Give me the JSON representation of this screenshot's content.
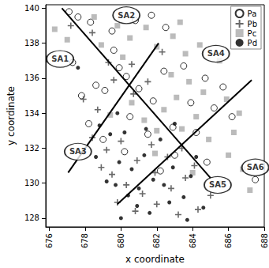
{
  "chart_data": {
    "type": "scatter",
    "x_label": "x coordinate",
    "y_label": "y coordinate",
    "xlim": [
      675.8,
      688
    ],
    "xticks": [
      676,
      678,
      680,
      682,
      684,
      686,
      688
    ],
    "ylim": [
      127.5,
      140.2
    ],
    "yticks": [
      128,
      130,
      132,
      134,
      136,
      138,
      140
    ],
    "grid": false,
    "legend": "top-right",
    "series": [
      {
        "name": "Pa",
        "color": "#000000",
        "marker": "open_circle",
        "x": [
          677.1,
          677.6,
          678.3,
          679.5,
          680.8,
          681.7,
          682.5,
          679.9,
          680.3,
          678.6,
          679.1,
          677.8,
          681.0,
          682.4,
          683.5,
          684.7,
          683.9,
          685.2,
          681.8,
          680.5,
          682.9,
          681.5,
          684.2,
          683.0,
          680.2,
          679.0,
          678.2,
          682.2,
          684.8,
          687.5,
          677.3,
          679.6,
          686.2,
          685.7
        ],
        "y": [
          139.8,
          139.5,
          139.2,
          138.7,
          139.3,
          139.6,
          138.9,
          136.6,
          136.1,
          135.6,
          135.3,
          135.0,
          135.4,
          136.4,
          136.7,
          136.0,
          134.6,
          134.3,
          134.7,
          133.8,
          133.2,
          132.8,
          132.9,
          131.6,
          131.8,
          132.5,
          133.4,
          130.7,
          131.2,
          130.2,
          136.9,
          137.6,
          133.8,
          135.5
        ]
      },
      {
        "name": "Pb",
        "color": "#444444",
        "marker": "plus",
        "x": [
          677.2,
          678.4,
          679.3,
          677.9,
          678.7,
          679.6,
          680.7,
          681.5,
          678.4,
          679.2,
          680.0,
          680.9,
          681.7,
          682.6,
          683.4,
          684.1,
          679.5,
          680.3,
          681.2,
          682.0,
          682.8,
          683.6,
          684.3,
          683.2,
          680.8,
          678.9,
          677.9,
          681.9,
          680.6,
          682.3,
          685.0,
          679.8
        ],
        "y": [
          139.0,
          138.6,
          136.9,
          134.8,
          134.2,
          135.9,
          135.1,
          135.8,
          132.6,
          131.9,
          132.4,
          131.3,
          132.2,
          131.5,
          132.0,
          131.0,
          130.5,
          129.9,
          129.4,
          128.8,
          129.7,
          130.3,
          128.5,
          128.2,
          128.4,
          130.9,
          131.8,
          130.6,
          136.8,
          137.5,
          129.3,
          128.9
        ]
      },
      {
        "name": "Pc",
        "color": "#aaaaaa",
        "marker": "square",
        "x": [
          676.3,
          677.0,
          678.5,
          679.8,
          680.5,
          681.4,
          682.0,
          682.9,
          683.6,
          684.4,
          685.5,
          682.8,
          683.8,
          684.6,
          685.9,
          686.6,
          683.1,
          684.2,
          682.4,
          681.3,
          683.4,
          684.9,
          686.0,
          686.8,
          685.5,
          682.0,
          680.6,
          679.4,
          681.9,
          678.9,
          683.3,
          686.3,
          687.2,
          680.1,
          684.0
        ],
        "y": [
          138.8,
          138.2,
          139.5,
          139.0,
          138.3,
          138.9,
          137.8,
          138.4,
          137.4,
          137.9,
          137.0,
          136.2,
          135.8,
          135.2,
          134.8,
          134.0,
          134.9,
          133.8,
          134.2,
          133.6,
          133.1,
          132.5,
          131.6,
          130.8,
          130.0,
          133.0,
          134.6,
          133.9,
          131.7,
          137.9,
          139.2,
          132.9,
          129.6,
          137.2,
          130.6
        ]
      },
      {
        "name": "Pd",
        "color": "#000000",
        "marker": "dot",
        "x": [
          677.6,
          678.8,
          679.4,
          680.2,
          679.9,
          680.6,
          681.3,
          681.8,
          682.4,
          681.0,
          680.4,
          679.7,
          680.9,
          681.6,
          682.7,
          683.5,
          683.9,
          682.2,
          683.0,
          684.2,
          679.2,
          678.6,
          679.8,
          683.7,
          684.6,
          682.9,
          680.0,
          681.4
        ],
        "y": [
          136.6,
          133.3,
          132.8,
          132.9,
          131.2,
          130.8,
          131.6,
          130.2,
          129.9,
          129.7,
          129.3,
          129.9,
          128.7,
          128.3,
          128.9,
          129.2,
          130.4,
          132.5,
          133.4,
          131.5,
          130.1,
          131.5,
          134.0,
          127.9,
          128.6,
          130.9,
          128.0,
          133.1
        ]
      }
    ],
    "lines": [
      {
        "x": [
          676.7,
          685.0
        ],
        "y": [
          140.0,
          130.3
        ]
      },
      {
        "x": [
          677.05,
          682.1
        ],
        "y": [
          130.6,
          138.0
        ]
      },
      {
        "x": [
          679.8,
          687.3
        ],
        "y": [
          128.8,
          135.9
        ]
      }
    ],
    "annotations": [
      {
        "text": "SA1",
        "x": 676.6,
        "y": 137.1
      },
      {
        "text": "SA2",
        "x": 680.3,
        "y": 139.6
      },
      {
        "text": "SA3",
        "x": 677.6,
        "y": 131.8
      },
      {
        "text": "SA4",
        "x": 685.3,
        "y": 137.4
      },
      {
        "text": "SA5",
        "x": 685.4,
        "y": 129.9
      },
      {
        "text": "SA6",
        "x": 687.5,
        "y": 130.9
      }
    ]
  }
}
